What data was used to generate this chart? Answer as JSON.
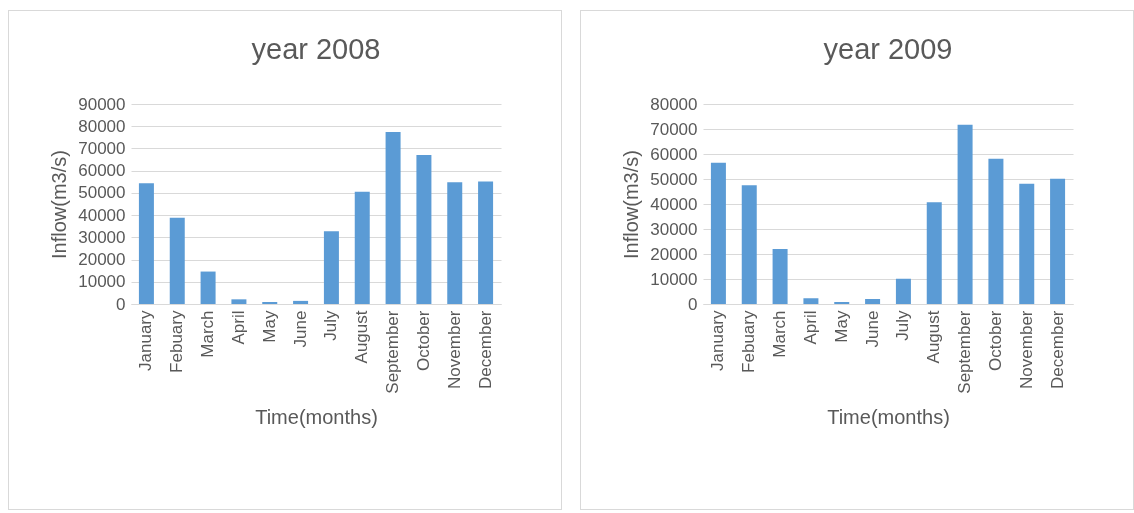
{
  "chart_data": [
    {
      "type": "bar",
      "title": "year 2008",
      "xlabel": "Time(months)",
      "ylabel": "Inflow(m3/s)",
      "categories": [
        "January",
        "Febuary",
        "March",
        "April",
        "May",
        "June",
        "July",
        "August",
        "September",
        "October",
        "November",
        "December"
      ],
      "values": [
        54300,
        38800,
        14600,
        2100,
        900,
        1400,
        32700,
        50500,
        77400,
        67000,
        54800,
        55100
      ],
      "color": "#5b9bd5",
      "ylim": [
        0,
        90000
      ],
      "yticks": [
        0,
        10000,
        20000,
        30000,
        40000,
        50000,
        60000,
        70000,
        80000,
        90000
      ],
      "grid": "y"
    },
    {
      "type": "bar",
      "title": "year 2009",
      "xlabel": "Time(months)",
      "ylabel": "Inflow(m3/s)",
      "categories": [
        "January",
        "Febuary",
        "March",
        "April",
        "May",
        "June",
        "July",
        "August",
        "September",
        "October",
        "November",
        "December"
      ],
      "values": [
        56500,
        47500,
        22000,
        2300,
        800,
        2000,
        10100,
        40700,
        71700,
        58100,
        48100,
        50100
      ],
      "color": "#5b9bd5",
      "ylim": [
        0,
        80000
      ],
      "yticks": [
        0,
        10000,
        20000,
        30000,
        40000,
        50000,
        60000,
        70000,
        80000
      ],
      "grid": "y"
    }
  ]
}
